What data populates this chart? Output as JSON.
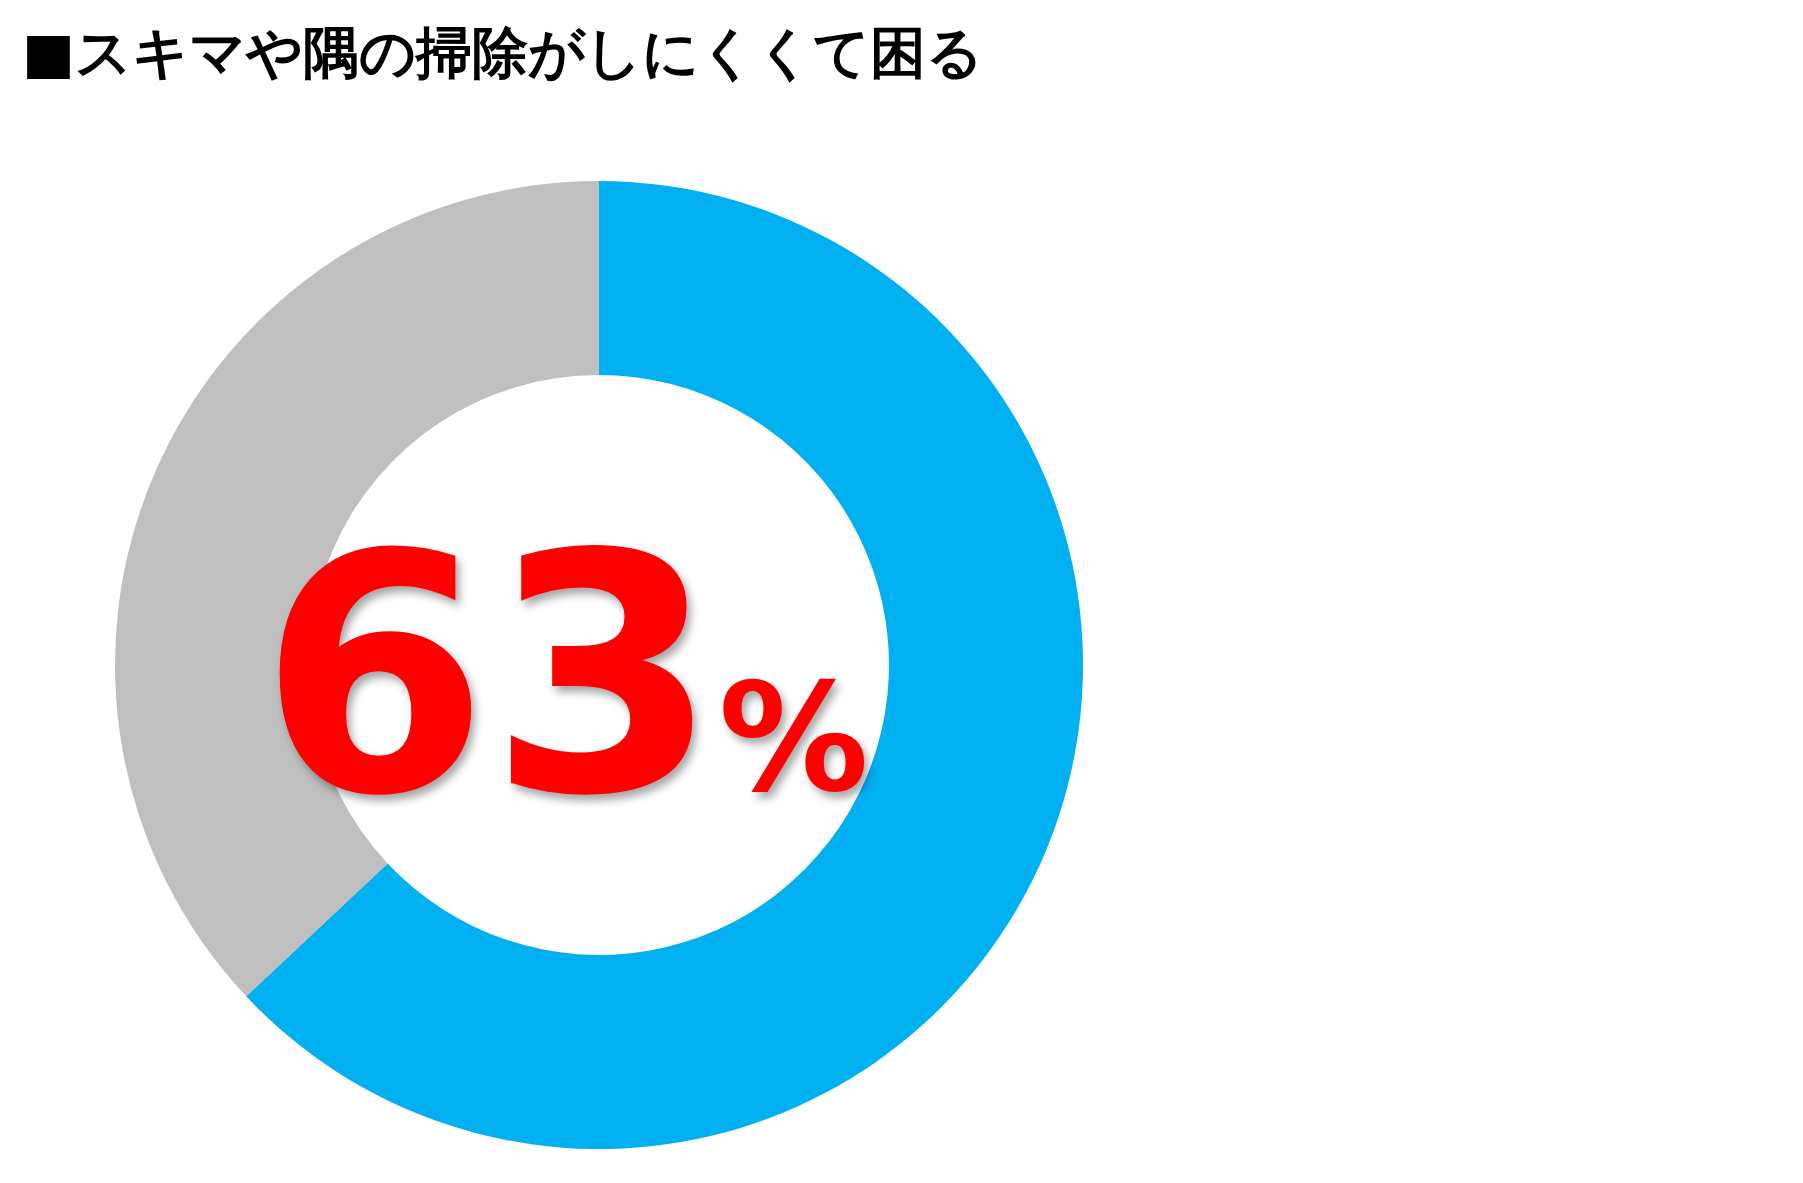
{
  "chart_data": {
    "type": "donut",
    "title": "■スキマや隅の掃除がしにくくて困る",
    "categories": [
      null,
      null
    ],
    "values": [
      63,
      37
    ],
    "colors": [
      "#00b0f0",
      "#bfbfbf"
    ],
    "value_labels": [
      "63%",
      null
    ]
  }
}
